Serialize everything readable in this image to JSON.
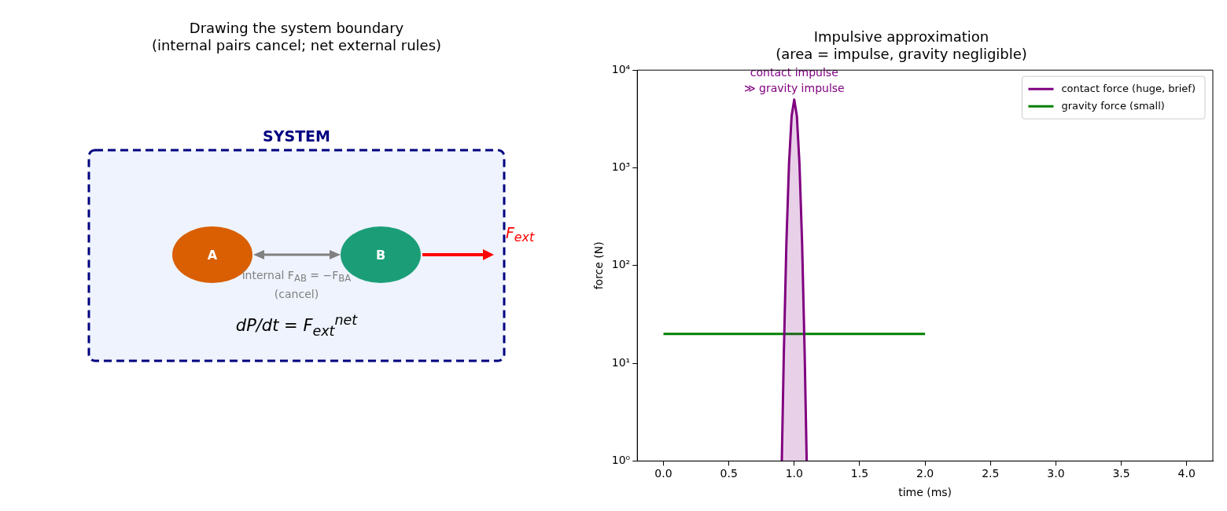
{
  "chart_data": [
    {
      "type": "other",
      "title": "Drawing the system boundary\n(internal pairs cancel; net external rules)",
      "annotations": [
        "SYSTEM",
        "A",
        "B",
        "internal F$_{AB}$ = −F$_{BA}$\n(cancel)",
        "F$_{ext}$",
        "dP/dt = F$_{ext}$$^{net}$"
      ]
    },
    {
      "type": "line",
      "title": "Impulsive approximation\n(area = impulse, gravity negligible)",
      "xlabel": "time (ms)",
      "ylabel": "force (N)",
      "log": "y",
      "xlim": [
        -0.2,
        4.2
      ],
      "xticks": [
        {
          "value": 0,
          "label": "0.0"
        },
        {
          "value": 0.5,
          "label": "0.5"
        },
        {
          "value": 1,
          "label": "1.0"
        },
        {
          "value": 1.5,
          "label": "1.5"
        },
        {
          "value": 2,
          "label": "2.0"
        },
        {
          "value": 2.5,
          "label": "2.5"
        },
        {
          "value": 3,
          "label": "3.0"
        },
        {
          "value": 3.5,
          "label": "3.5"
        },
        {
          "value": 4,
          "label": "4.0"
        }
      ],
      "ylim": [
        1,
        10000
      ],
      "yticks": [
        {
          "value": 1,
          "label": "10⁰"
        },
        {
          "value": 10,
          "label": "10¹"
        },
        {
          "value": 100,
          "label": "10²"
        },
        {
          "value": 1000,
          "label": "10³"
        },
        {
          "value": 10000,
          "label": "10⁴"
        }
      ],
      "grid": false,
      "legend": "top right",
      "marker": "none",
      "line_style": "solid",
      "series": [
        {
          "name": "contact force (huge, brief)",
          "type": "area",
          "color": "#800080",
          "x": [
            0.905,
            0.92,
            0.94,
            0.96,
            0.98,
            1.0,
            1.02,
            1.04,
            1.06,
            1.08,
            1.095
          ],
          "values": [
            1,
            12,
            170,
            1100,
            3400,
            5000,
            3400,
            1100,
            170,
            12,
            1
          ]
        },
        {
          "name": "gravity force (small)",
          "type": "line",
          "color": "#008000",
          "x": [
            0,
            2
          ],
          "values": [
            20,
            20
          ]
        }
      ],
      "annotations": [
        "contact impulse\n≫ gravity impulse"
      ]
    }
  ]
}
